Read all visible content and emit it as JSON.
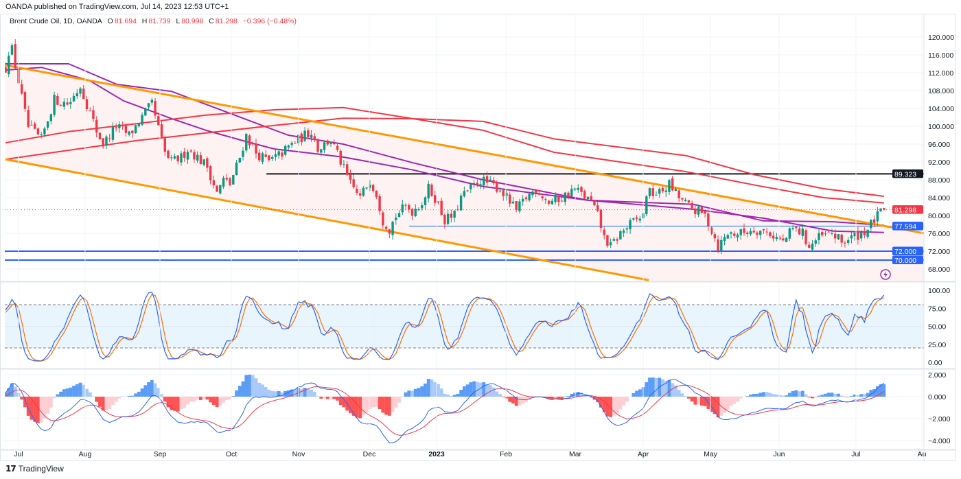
{
  "publisher_line": "OANDA published on TradingView.com, Jul 14, 2023 12:53 UTC+1",
  "legend": {
    "symbol": "Brent Crude Oil, 1D, OANDA",
    "o_label": "O",
    "o_value": "81.694",
    "h_label": "H",
    "h_value": "81.739",
    "l_label": "L",
    "l_value": "80.998",
    "c_label": "C",
    "c_value": "81.298",
    "change": "−0.396 (−0.48%)"
  },
  "footer": {
    "logo_text": "TradingView"
  },
  "price_axis": [
    "120.000",
    "116.000",
    "112.000",
    "108.000",
    "104.000",
    "100.000",
    "96.000",
    "92.000",
    "88.000",
    "84.000",
    "80.000",
    "76.000",
    "72.000",
    "68.000"
  ],
  "stoch_axis": [
    "100.00",
    "75.00",
    "50.00",
    "25.00",
    "0.00"
  ],
  "macd_axis": [
    "2.000",
    "0.000",
    "−2.000",
    "−4.000"
  ],
  "time_axis": [
    "Jul",
    "Aug",
    "Sep",
    "Oct",
    "Nov",
    "Dec",
    "2023",
    "Feb",
    "Mar",
    "Apr",
    "May",
    "Jun",
    "Jul",
    "Au"
  ],
  "badges": {
    "resistance": "89.323",
    "last_price": "81.298",
    "support_mid": "77.594",
    "support_1": "72.000",
    "support_2": "70.000"
  },
  "colors": {
    "up": "#089981",
    "down": "#f23645",
    "ma_purple": "#9c27b0",
    "ma_red": "#f23645",
    "channel": "#ff9800",
    "level_blue": "#2962ff",
    "level_black": "#131722",
    "stoch_k": "#2962ff",
    "stoch_d": "#ff6d00",
    "macd": "#2962ff",
    "signal": "#f23645"
  },
  "chart_data": {
    "type": "candlestick",
    "title": "Brent Crude Oil, 1D, OANDA",
    "x_unit": "trading-day index from 1 Jul 2022",
    "y_range": [
      66,
      122
    ],
    "last_bar": {
      "open": 81.694,
      "high": 81.739,
      "low": 80.998,
      "close": 81.298
    },
    "close_path": [
      [
        0,
        113
      ],
      [
        1.5,
        119
      ],
      [
        6.8,
        100
      ],
      [
        11,
        97
      ],
      [
        15,
        106
      ],
      [
        19.4,
        105
      ],
      [
        23,
        109
      ],
      [
        28,
        99
      ],
      [
        30,
        96
      ],
      [
        34,
        100
      ],
      [
        38,
        98
      ],
      [
        43,
        103
      ],
      [
        45,
        105
      ],
      [
        49,
        94
      ],
      [
        51,
        92
      ],
      [
        54,
        93
      ],
      [
        56,
        95
      ],
      [
        62,
        91
      ],
      [
        65,
        85
      ],
      [
        67,
        88
      ],
      [
        69,
        87
      ],
      [
        72,
        93
      ],
      [
        74,
        98
      ],
      [
        77,
        94
      ],
      [
        81,
        92
      ],
      [
        85,
        94
      ],
      [
        88,
        96
      ],
      [
        92,
        98
      ],
      [
        94,
        99
      ],
      [
        96,
        95
      ],
      [
        100,
        97
      ],
      [
        103,
        92
      ],
      [
        106,
        87
      ],
      [
        109,
        84
      ],
      [
        112,
        88
      ],
      [
        114,
        85
      ],
      [
        116,
        79
      ],
      [
        118,
        77
      ],
      [
        120,
        80
      ],
      [
        123,
        82
      ],
      [
        125,
        81
      ],
      [
        128,
        83
      ],
      [
        130,
        86
      ],
      [
        132,
        84
      ],
      [
        135,
        79
      ],
      [
        138,
        80
      ],
      [
        140,
        84
      ],
      [
        143,
        86
      ],
      [
        146,
        88
      ],
      [
        149,
        87
      ],
      [
        152,
        86
      ],
      [
        155,
        83
      ],
      [
        157,
        81
      ],
      [
        160,
        84
      ],
      [
        163,
        86
      ],
      [
        167,
        83
      ],
      [
        171,
        84
      ],
      [
        175,
        86
      ],
      [
        180,
        83
      ],
      [
        182,
        80
      ],
      [
        184,
        75
      ],
      [
        186,
        73
      ],
      [
        189,
        76
      ],
      [
        192,
        78
      ],
      [
        196,
        80
      ],
      [
        197,
        85
      ],
      [
        201,
        85
      ],
      [
        204,
        87
      ],
      [
        207,
        84
      ],
      [
        210,
        82
      ],
      [
        215,
        80
      ],
      [
        218,
        75
      ],
      [
        219,
        73
      ],
      [
        222,
        76
      ],
      [
        226,
        76
      ],
      [
        230,
        77
      ],
      [
        235,
        76
      ],
      [
        239,
        74
      ],
      [
        242,
        77
      ],
      [
        245,
        76
      ],
      [
        247,
        73
      ],
      [
        250,
        75
      ],
      [
        254,
        76
      ],
      [
        257,
        74
      ],
      [
        260,
        75
      ],
      [
        263,
        76
      ],
      [
        265,
        77
      ],
      [
        267,
        79
      ],
      [
        270,
        81.298
      ]
    ],
    "moving_averages": [
      {
        "name": "MA purple 1",
        "color": "#9c27b0",
        "points": [
          [
            0,
            114
          ],
          [
            19.4,
            114
          ],
          [
            34.2,
            109.4
          ],
          [
            51.1,
            107.8
          ],
          [
            67.9,
            103.2
          ],
          [
            86.9,
            98
          ],
          [
            103.8,
            96
          ],
          [
            125.3,
            91.8
          ],
          [
            146.8,
            88
          ],
          [
            179.1,
            83.4
          ],
          [
            211.4,
            82.5
          ],
          [
            232.9,
            78.8
          ],
          [
            254.4,
            78.6
          ],
          [
            270,
            77.8
          ]
        ]
      },
      {
        "name": "MA purple 2",
        "color": "#9c27b0",
        "points": [
          [
            0,
            112.6
          ],
          [
            11,
            113.2
          ],
          [
            25.7,
            110.3
          ],
          [
            36.3,
            105.7
          ],
          [
            51.1,
            101.7
          ],
          [
            61.6,
            99.1
          ],
          [
            74.3,
            96.5
          ],
          [
            82.7,
            94.9
          ],
          [
            91.1,
            94.2
          ],
          [
            103.8,
            93.1
          ],
          [
            125.3,
            90.2
          ],
          [
            146.8,
            86.5
          ],
          [
            179.1,
            83.4
          ],
          [
            211.4,
            81.4
          ],
          [
            232.9,
            79.4
          ],
          [
            254.4,
            76.5
          ],
          [
            270,
            76.2
          ]
        ]
      },
      {
        "name": "MA red 1",
        "color": "#f23645",
        "points": [
          [
            0,
            92.6
          ],
          [
            40.5,
            96.8
          ],
          [
            82.7,
            100.2
          ],
          [
            103.8,
            101.8
          ],
          [
            125.3,
            101.7
          ],
          [
            146.8,
            101.1
          ],
          [
            168.4,
            97.2
          ],
          [
            209.3,
            93.4
          ],
          [
            230.4,
            89.1
          ],
          [
            251.5,
            86
          ],
          [
            270,
            84.3
          ]
        ]
      },
      {
        "name": "MA red 2",
        "color": "#f23645",
        "points": [
          [
            0,
            96.3
          ],
          [
            19.4,
            98.8
          ],
          [
            40.5,
            100.6
          ],
          [
            61.6,
            102.5
          ],
          [
            82.7,
            103.7
          ],
          [
            103.8,
            104.2
          ],
          [
            125.3,
            101.7
          ],
          [
            146.8,
            99.1
          ],
          [
            168.4,
            94.2
          ],
          [
            209.3,
            89.8
          ],
          [
            230.4,
            86.8
          ],
          [
            251.5,
            84
          ],
          [
            270,
            82.8
          ]
        ]
      }
    ],
    "channel": {
      "upper": [
        [
          0,
          113.7
        ],
        [
          293.7,
          74.5
        ]
      ],
      "lower": [
        [
          0,
          92.6
        ],
        [
          197.7,
          65.5
        ]
      ]
    },
    "levels": [
      {
        "price": 89.323,
        "from_bar": 80.2,
        "color": "#131722"
      },
      {
        "price": 77.594,
        "from_bar": 124,
        "color": "#5b9cf6"
      },
      {
        "price": 72.0,
        "from_bar": -1,
        "color": "#2962ff"
      },
      {
        "price": 70.0,
        "from_bar": -1,
        "color": "#2962ff"
      }
    ],
    "stochastic": {
      "period": 14,
      "smooth_k": 3,
      "smooth_d": 3,
      "upper_band": 80,
      "lower_band": 20,
      "range": [
        0,
        100
      ]
    },
    "macd": {
      "fast": 12,
      "slow": 26,
      "signal": 9,
      "range": [
        -4.5,
        2.2
      ]
    }
  }
}
